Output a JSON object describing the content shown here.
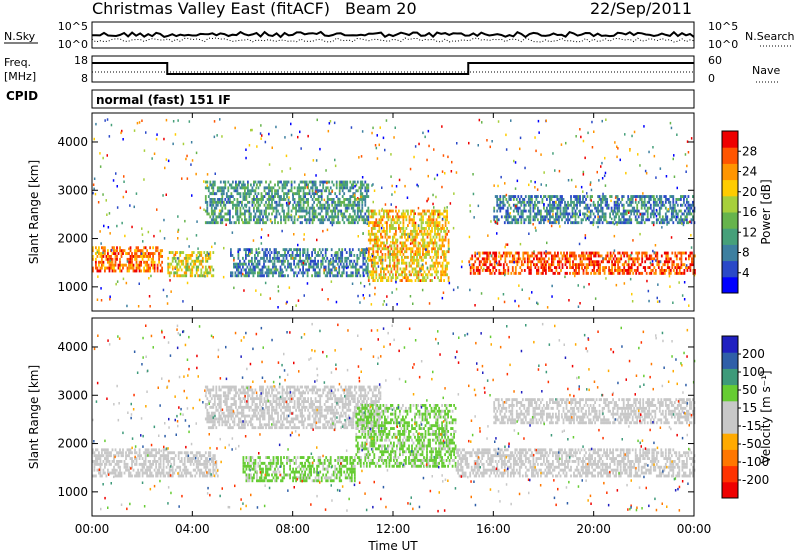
{
  "header": {
    "title": "Christmas Valley East (fitACF)",
    "beam": "Beam 20",
    "date": "22/Sep/2011"
  },
  "panels": {
    "nsky": {
      "left_label": "N.Sky",
      "right_label": "N.Search",
      "ticks_left": [
        "10^5",
        "10^0"
      ],
      "ticks_right": [
        "10^5",
        "10^0"
      ]
    },
    "freq": {
      "left_label_1": "Freq.",
      "left_label_2": "[MHz]",
      "right_label": "Nave",
      "ticks_left": [
        "18",
        "8"
      ],
      "ticks_right": [
        "60",
        "0"
      ]
    },
    "cpid": {
      "label": "CPID",
      "mode_text": "normal (fast) 151 IF"
    }
  },
  "colors": {
    "power_scale": [
      "#0000ff",
      "#2a49c8",
      "#3d7fa0",
      "#46a07a",
      "#66b44c",
      "#a7cf3b",
      "#ffcc00",
      "#ff9500",
      "#ff5500",
      "#ee0000"
    ],
    "velocity_scale": [
      "#2020c0",
      "#2f5fa8",
      "#3e9a7a",
      "#66cc33",
      "#c8c8c8",
      "#c8c8c8",
      "#ffaa00",
      "#ff7700",
      "#ff3300",
      "#ee0000"
    ]
  },
  "chart_data": [
    {
      "type": "heatmap",
      "name": "power",
      "ylabel": "Slant Range [km]",
      "yticks": [
        "1000",
        "2000",
        "3000",
        "4000"
      ],
      "ylim": [
        500,
        4600
      ],
      "xlim": [
        0,
        24
      ],
      "xticks": [
        "00:00",
        "04:00",
        "08:00",
        "12:00",
        "16:00",
        "20:00",
        "00:00"
      ],
      "colorbar_label": "Power [dB]",
      "colorbar_ticks": [
        "4",
        "8",
        "12",
        "16",
        "20",
        "24",
        "28"
      ],
      "colorbar_range": [
        0,
        30
      ],
      "bands": [
        {
          "t": [
            0,
            2.8
          ],
          "r": [
            1300,
            1800
          ],
          "level": 24
        },
        {
          "t": [
            3,
            4.8
          ],
          "r": [
            1200,
            1700
          ],
          "level": 18
        },
        {
          "t": [
            4.5,
            11
          ],
          "r": [
            2300,
            3200
          ],
          "level": 10
        },
        {
          "t": [
            5.5,
            11
          ],
          "r": [
            1200,
            1800
          ],
          "level": 8
        },
        {
          "t": [
            11,
            14.2
          ],
          "r": [
            1100,
            2600
          ],
          "level": 20
        },
        {
          "t": [
            15,
            24
          ],
          "r": [
            1250,
            1700
          ],
          "level": 26
        },
        {
          "t": [
            16,
            24
          ],
          "r": [
            2300,
            2900
          ],
          "level": 8
        }
      ]
    },
    {
      "type": "heatmap",
      "name": "velocity",
      "ylabel": "Slant Range [km]",
      "yticks": [
        "1000",
        "2000",
        "3000",
        "4000"
      ],
      "ylim": [
        500,
        4600
      ],
      "xlim": [
        0,
        24
      ],
      "xticks": [
        "00:00",
        "04:00",
        "08:00",
        "12:00",
        "16:00",
        "20:00",
        "00:00"
      ],
      "xlabel": "Time UT",
      "colorbar_label": "Velocity [m s⁻¹]",
      "colorbar_ticks": [
        "200",
        "100",
        "50",
        "15",
        "-15",
        "-50",
        "-100",
        "-200"
      ],
      "colorbar_range": [
        -250,
        250
      ],
      "bands": [
        {
          "t": [
            0,
            3
          ],
          "r": [
            1300,
            1900
          ],
          "value": 0
        },
        {
          "t": [
            3,
            5
          ],
          "r": [
            1300,
            1800
          ],
          "value": 0
        },
        {
          "t": [
            4.5,
            11.5
          ],
          "r": [
            2300,
            3200
          ],
          "value": 0
        },
        {
          "t": [
            6,
            10.5
          ],
          "r": [
            1200,
            1700
          ],
          "value": 60
        },
        {
          "t": [
            10.5,
            14.5
          ],
          "r": [
            1500,
            2800
          ],
          "value": 60
        },
        {
          "t": [
            14.5,
            24
          ],
          "r": [
            1300,
            1900
          ],
          "value": 0
        },
        {
          "t": [
            16,
            24
          ],
          "r": [
            2400,
            2900
          ],
          "value": 0
        }
      ]
    }
  ]
}
